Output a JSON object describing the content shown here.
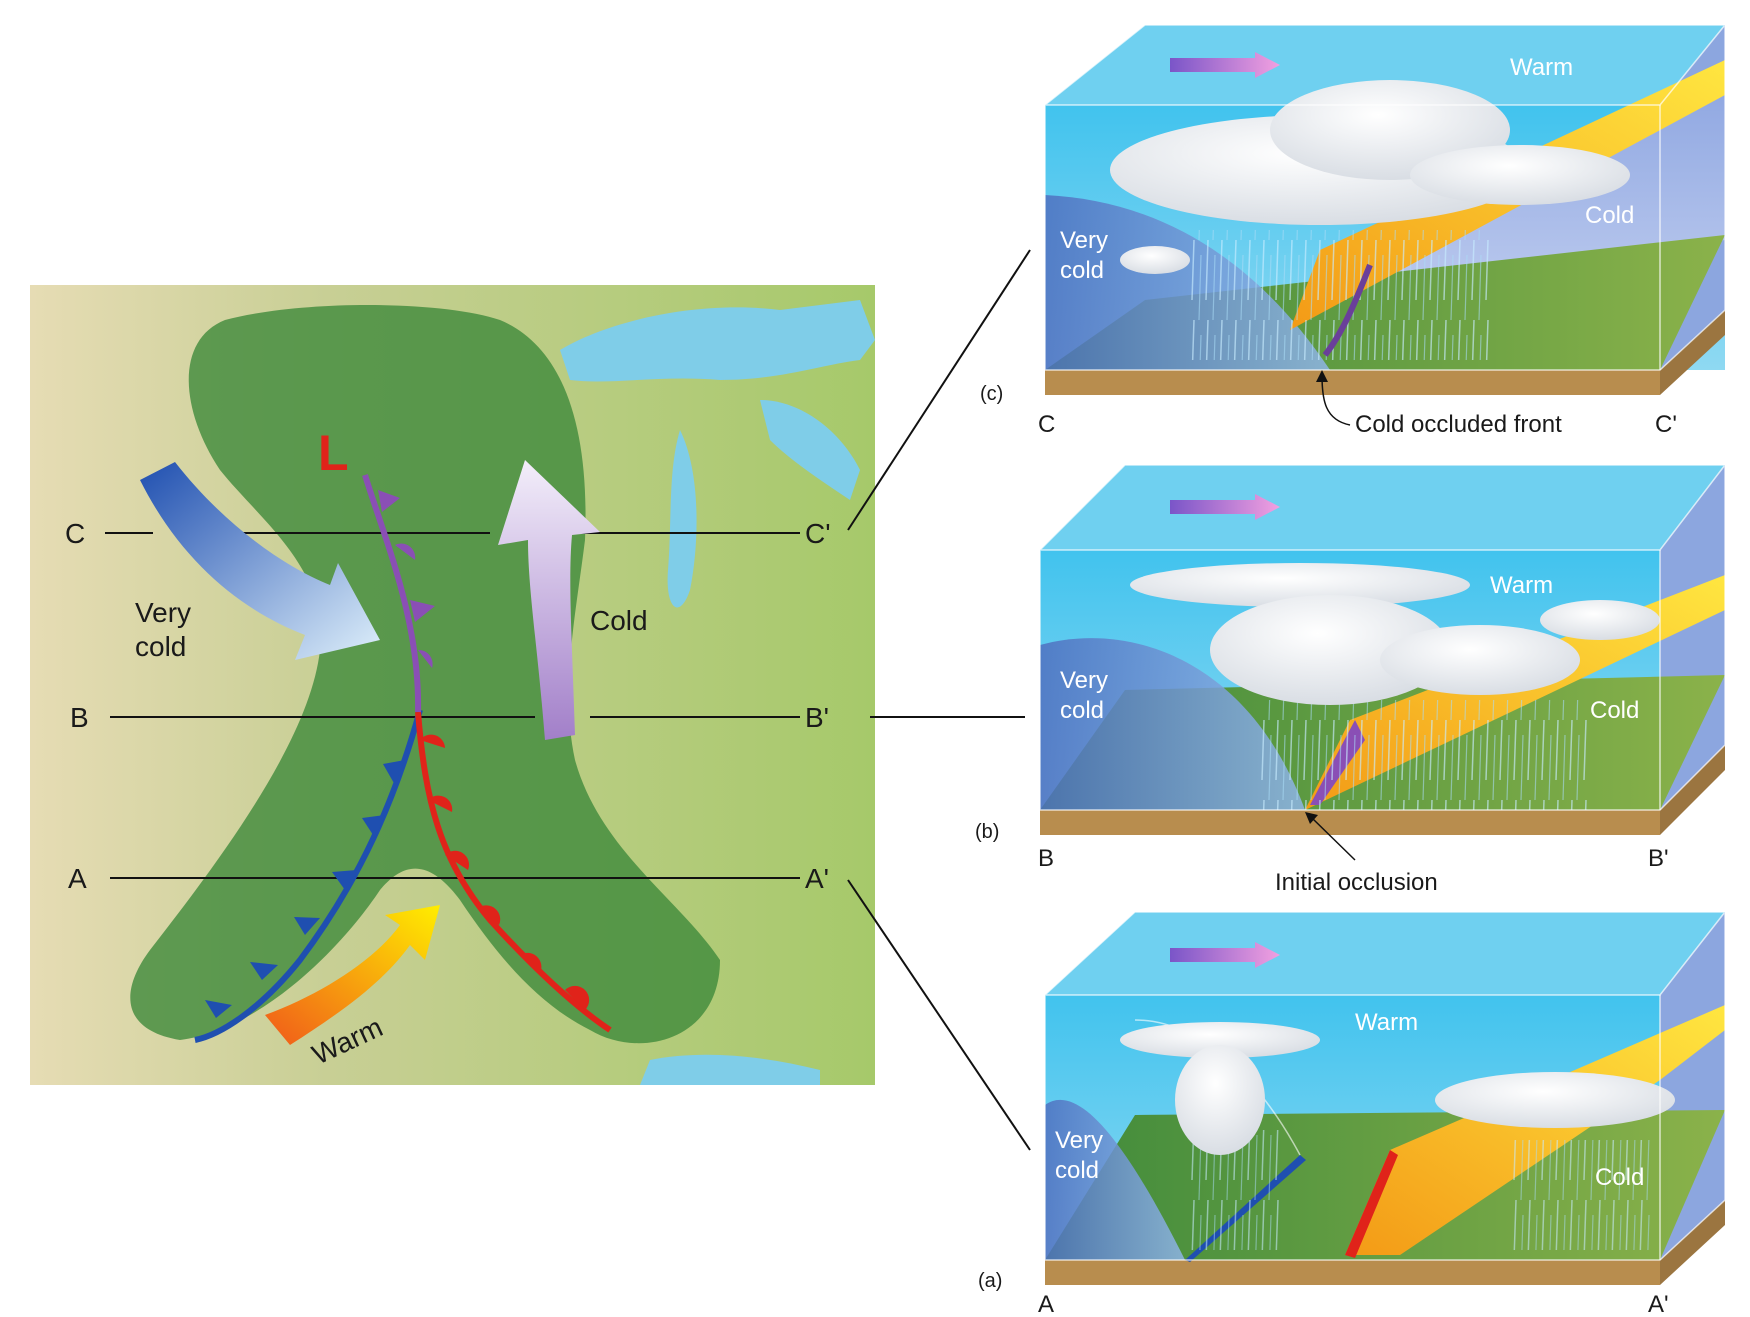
{
  "map": {
    "low_symbol": "L",
    "airmass_labels": {
      "very_cold": [
        "Very",
        "cold"
      ],
      "cold": "Cold",
      "warm": "Warm"
    },
    "section_lines": [
      {
        "start": "C",
        "end": "C'"
      },
      {
        "start": "B",
        "end": "B'"
      },
      {
        "start": "A",
        "end": "A'"
      }
    ]
  },
  "panels": [
    {
      "id": "c",
      "tag": "(c)",
      "start_label": "C",
      "end_label": "C'",
      "warm": "Warm",
      "cold": "Cold",
      "very_cold": [
        "Very",
        "cold"
      ],
      "callout": "Cold occluded front"
    },
    {
      "id": "b",
      "tag": "(b)",
      "start_label": "B",
      "end_label": "B'",
      "warm": "Warm",
      "cold": "Cold",
      "very_cold": [
        "Very",
        "cold"
      ],
      "callout": "Initial occlusion"
    },
    {
      "id": "a",
      "tag": "(a)",
      "start_label": "A",
      "end_label": "A'",
      "warm": "Warm",
      "cold": "Cold",
      "very_cold": [
        "Very",
        "cold"
      ],
      "callout": ""
    }
  ],
  "colors": {
    "cold_front": "#1f4fb0",
    "warm_front": "#e0231a",
    "occluded_front": "#8a4fb5",
    "low_center": "#e0231a",
    "sky": "#3cbde8",
    "ground": "#5e9a3a",
    "soil": "#b88d4e",
    "very_cold_wedge": "#5b7fc9",
    "warm_air_arrow_start": "#f05a1a",
    "warm_air_arrow_end": "#ffee00"
  }
}
